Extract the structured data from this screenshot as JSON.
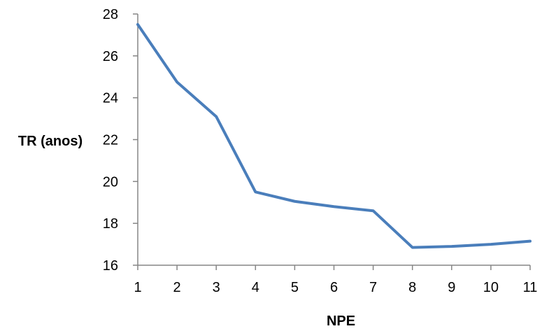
{
  "chart_data": {
    "type": "line",
    "title": "",
    "xlabel": "NPE",
    "ylabel": "TR (anos)",
    "x": [
      1,
      2,
      3,
      4,
      5,
      6,
      7,
      8,
      9,
      10,
      11
    ],
    "x_tick_labels": [
      "1",
      "2",
      "3",
      "4",
      "5",
      "6",
      "7",
      "8",
      "9",
      "10",
      "11"
    ],
    "y_tick_labels": [
      "16",
      "18",
      "20",
      "22",
      "24",
      "26",
      "28"
    ],
    "xlim": [
      1,
      11
    ],
    "ylim": [
      16,
      28
    ],
    "y_ticks": [
      16,
      18,
      20,
      22,
      24,
      26,
      28
    ],
    "grid": false,
    "legend": "none",
    "series": [
      {
        "color": "#4a7ebb",
        "values": [
          27.5,
          24.75,
          23.1,
          19.5,
          19.05,
          18.8,
          18.6,
          16.85,
          16.9,
          17.0,
          17.15
        ]
      }
    ]
  }
}
